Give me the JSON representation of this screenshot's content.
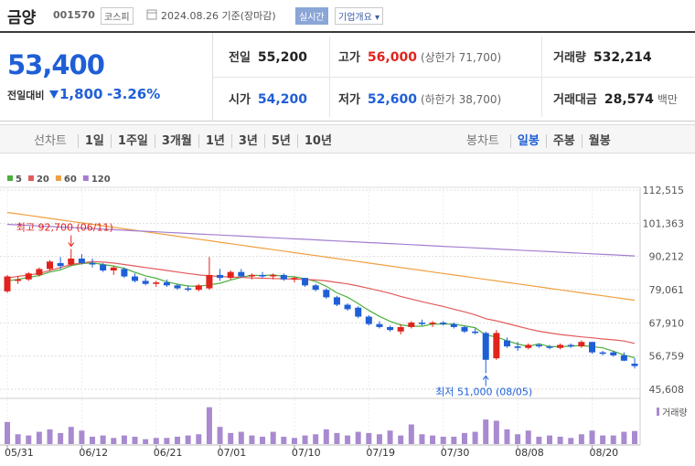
{
  "header": {
    "name": "금양",
    "code": "001570",
    "market": "코스피",
    "date": "2024.08.26 기준(장마감)",
    "realtime": "실시간",
    "overview": "기업개요"
  },
  "price": {
    "current": "53,400",
    "change_label": "전일대비",
    "change": "1,800",
    "change_rate": "-3.26%"
  },
  "summary": [
    {
      "label": "전일",
      "value": "55,200",
      "color": "#222222"
    },
    {
      "label": "고가",
      "value": "56,000",
      "note": "(상한가 71,700)",
      "color": "#e0231d"
    },
    {
      "label": "거래량",
      "value": "532,214",
      "color": "#222222"
    },
    {
      "label": "시가",
      "value": "54,200",
      "color": "#1f5fd6"
    },
    {
      "label": "저가",
      "value": "52,600",
      "note": "(하한가 38,700)",
      "color": "#1f5fd6"
    },
    {
      "label": "거래대금",
      "value": "28,574",
      "note": "백만",
      "color": "#222222"
    }
  ],
  "tabs": {
    "line_label": "선차트",
    "line": [
      "1일",
      "1주일",
      "3개월",
      "1년",
      "3년",
      "5년",
      "10년"
    ],
    "candle_label": "봉차트",
    "candle": [
      "일봉",
      "주봉",
      "월봉"
    ],
    "active": 0
  },
  "chart_data": [
    {
      "type": "candlestick",
      "categories": [
        "05/31",
        null,
        null,
        null,
        null,
        null,
        null,
        "06/12",
        null,
        null,
        null,
        null,
        null,
        null,
        "06/21",
        null,
        null,
        null,
        null,
        null,
        "07/01",
        null,
        null,
        null,
        null,
        null,
        null,
        "07/10",
        null,
        null,
        null,
        null,
        null,
        null,
        "07/19",
        null,
        null,
        null,
        null,
        null,
        null,
        "07/30",
        null,
        null,
        null,
        null,
        null,
        null,
        "08/08",
        null,
        null,
        null,
        null,
        null,
        null,
        "08/20",
        null,
        null,
        null,
        null
      ],
      "open": [
        78500,
        82000,
        82500,
        84000,
        86000,
        88000,
        87500,
        89500,
        88000,
        87500,
        85500,
        86000,
        83500,
        82000,
        81000,
        81500,
        80500,
        79500,
        79000,
        79500,
        84000,
        83000,
        85000,
        83500,
        84000,
        83500,
        84000,
        82500,
        83000,
        80500,
        79000,
        76500,
        74000,
        73000,
        70000,
        67500,
        66500,
        65000,
        66500,
        68000,
        67500,
        68000,
        67500,
        66500,
        65000,
        64500,
        56000,
        62000,
        60000,
        59500,
        60500,
        60000,
        59500,
        60500,
        60000,
        61500,
        58000,
        58000,
        57000,
        54200
      ],
      "high": [
        84000,
        83500,
        85000,
        86500,
        89000,
        90000,
        92700,
        91000,
        89500,
        88000,
        87000,
        86500,
        84500,
        83000,
        82000,
        82500,
        81000,
        80500,
        81000,
        90000,
        86000,
        85500,
        86000,
        84500,
        85000,
        84500,
        84500,
        83500,
        83000,
        81000,
        79500,
        77000,
        74500,
        73500,
        70500,
        68500,
        67000,
        67500,
        68500,
        69000,
        68500,
        68500,
        68000,
        67000,
        66000,
        65000,
        65500,
        63000,
        61500,
        61000,
        61000,
        60500,
        61000,
        61000,
        62000,
        61500,
        58500,
        58500,
        58000,
        56000
      ],
      "low": [
        78000,
        81000,
        82000,
        83500,
        85500,
        86000,
        87000,
        87500,
        86500,
        85000,
        84000,
        83000,
        81500,
        80500,
        80000,
        80000,
        79000,
        78500,
        78500,
        79000,
        82000,
        82500,
        83000,
        82500,
        83000,
        82500,
        82000,
        81500,
        80000,
        78500,
        76000,
        73500,
        72000,
        69500,
        67000,
        66000,
        65000,
        64000,
        66000,
        67000,
        66500,
        67000,
        66000,
        64500,
        64000,
        51000,
        55500,
        59500,
        58500,
        59000,
        59500,
        59000,
        59000,
        59500,
        59500,
        57500,
        57000,
        56500,
        55000,
        52600
      ],
      "close": [
        83500,
        82500,
        84500,
        86000,
        88500,
        87000,
        89500,
        88000,
        87500,
        85500,
        86500,
        83500,
        82000,
        81000,
        81500,
        80500,
        79500,
        79000,
        80500,
        84000,
        83000,
        85000,
        83500,
        84000,
        83500,
        84000,
        82500,
        83000,
        80500,
        79000,
        76500,
        74000,
        72500,
        70000,
        67500,
        66500,
        65500,
        66500,
        68000,
        67500,
        68000,
        67500,
        66500,
        65000,
        64500,
        55500,
        64500,
        60000,
        59500,
        60500,
        60000,
        59500,
        60500,
        60000,
        61500,
        58000,
        57500,
        57000,
        55200,
        53400
      ],
      "up_color": "#e0231d",
      "down_color": "#1f5fd6",
      "series": [
        {
          "name": "5",
          "color": "#4caf3c",
          "values": [
            82000,
            82500,
            83200,
            83800,
            85000,
            85700,
            87100,
            87800,
            88100,
            87500,
            87000,
            86200,
            84900,
            83700,
            82900,
            81700,
            80900,
            80300,
            80200,
            80700,
            81200,
            82300,
            83200,
            83900,
            83800,
            84000,
            83500,
            83400,
            82700,
            81800,
            80200,
            78000,
            76500,
            74400,
            72100,
            70100,
            68400,
            67200,
            66800,
            66800,
            67500,
            67500,
            67500,
            66900,
            66300,
            63800,
            63200,
            61900,
            60800,
            60000,
            60900,
            59900,
            59900,
            60100,
            60300,
            59900,
            59500,
            58400,
            57100,
            56200
          ]
        },
        {
          "name": "20",
          "color": "#e35b5b",
          "values": [
            83000,
            83500,
            84000,
            84500,
            85500,
            86500,
            87500,
            88000,
            88500,
            88300,
            88000,
            87500,
            87000,
            86500,
            86000,
            85500,
            85000,
            84500,
            84000,
            83700,
            83500,
            83300,
            83200,
            83000,
            82900,
            82800,
            82700,
            82600,
            82500,
            82300,
            82000,
            81500,
            81000,
            80300,
            79500,
            78700,
            77800,
            76800,
            75900,
            75000,
            74200,
            73400,
            72500,
            71600,
            70600,
            69300,
            68600,
            67700,
            66800,
            65900,
            65100,
            64500,
            64000,
            63600,
            63200,
            62900,
            62500,
            62200,
            61800,
            61000
          ]
        },
        {
          "name": "60",
          "color": "#f0a040",
          "values": [
            105000,
            104500,
            104000,
            103500,
            103000,
            102500,
            102000,
            101500,
            101000,
            100500,
            100000,
            99500,
            99000,
            98500,
            98000,
            97500,
            97000,
            96500,
            96000,
            95500,
            95000,
            94500,
            94000,
            93500,
            93000,
            92500,
            92000,
            91500,
            91000,
            90500,
            90000,
            89500,
            89000,
            88500,
            88000,
            87500,
            87000,
            86500,
            86000,
            85500,
            85000,
            84500,
            84000,
            83500,
            83000,
            82500,
            82000,
            81500,
            81000,
            80500,
            80000,
            79500,
            79000,
            78500,
            78000,
            77500,
            77000,
            76500,
            76000,
            75500
          ]
        },
        {
          "name": "120",
          "color": "#a47fd0",
          "values": [
            101000,
            100820,
            100640,
            100460,
            100280,
            100100,
            99920,
            99740,
            99560,
            99380,
            99200,
            99020,
            98840,
            98660,
            98480,
            98300,
            98120,
            97940,
            97760,
            97580,
            97400,
            97220,
            97040,
            96860,
            96680,
            96500,
            96320,
            96140,
            95960,
            95780,
            95600,
            95420,
            95240,
            95060,
            94880,
            94700,
            94520,
            94340,
            94160,
            93980,
            93800,
            93620,
            93440,
            93260,
            93080,
            92900,
            92720,
            92540,
            92360,
            92180,
            92000,
            91820,
            91640,
            91460,
            91280,
            91100,
            90920,
            90740,
            90560,
            90380
          ]
        }
      ],
      "ylim": [
        45608,
        112515
      ],
      "yticks": [
        {
          "value": 112515,
          "label": "112,515"
        },
        {
          "value": 101363,
          "label": "101,363"
        },
        {
          "value": 90212,
          "label": "90,212"
        },
        {
          "value": 79061,
          "label": "79,061"
        },
        {
          "value": 67910,
          "label": "67,910"
        },
        {
          "value": 56759,
          "label": "56,759"
        },
        {
          "value": 45608,
          "label": "45,608"
        }
      ],
      "grid": true,
      "annotations": [
        {
          "text": "최고 92,700 (06/11)",
          "index": 6,
          "color": "#e0231d"
        },
        {
          "text": "최저 51,000 (08/05)",
          "index": 45,
          "color": "#1f5fd6"
        }
      ]
    },
    {
      "type": "bar",
      "series": [
        {
          "name": "거래량",
          "color": "#a98ad0",
          "values": [
            900000,
            400000,
            350000,
            500000,
            600000,
            450000,
            700000,
            550000,
            300000,
            350000,
            250000,
            350000,
            300000,
            200000,
            250000,
            250000,
            300000,
            350000,
            400000,
            1500000,
            700000,
            450000,
            500000,
            350000,
            300000,
            500000,
            300000,
            250000,
            350000,
            400000,
            600000,
            450000,
            350000,
            500000,
            450000,
            400000,
            550000,
            350000,
            800000,
            400000,
            350000,
            300000,
            300000,
            450000,
            500000,
            1000000,
            950000,
            600000,
            400000,
            550000,
            300000,
            350000,
            300000,
            250000,
            400000,
            550000,
            350000,
            350000,
            500000,
            532214
          ]
        }
      ],
      "ylim": [
        0,
        1600000
      ]
    }
  ]
}
